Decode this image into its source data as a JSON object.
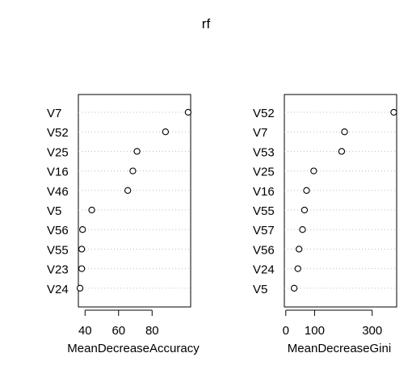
{
  "title": "rf",
  "chart_data": [
    {
      "type": "scatter",
      "xlabel": "MeanDecreaseAccuracy",
      "ylabel": "",
      "xlim": [
        36,
        103
      ],
      "xticks": [
        40,
        60,
        80
      ],
      "grid": "dotted horizontal",
      "categories": [
        "V7",
        "V52",
        "V25",
        "V16",
        "V46",
        "V5",
        "V56",
        "V55",
        "V23",
        "V24"
      ],
      "values": [
        101.5,
        88,
        71,
        68.5,
        65.5,
        44,
        38.5,
        38,
        38,
        37
      ]
    },
    {
      "type": "scatter",
      "xlabel": "MeanDecreaseGini",
      "ylabel": "",
      "xlim": [
        -5,
        385
      ],
      "xticks": [
        0,
        100,
        300
      ],
      "grid": "dotted horizontal",
      "categories": [
        "V52",
        "V7",
        "V53",
        "V25",
        "V16",
        "V55",
        "V57",
        "V56",
        "V24",
        "V5"
      ],
      "values": [
        375,
        204,
        194,
        97,
        72,
        65,
        58,
        46,
        42,
        29
      ]
    }
  ]
}
